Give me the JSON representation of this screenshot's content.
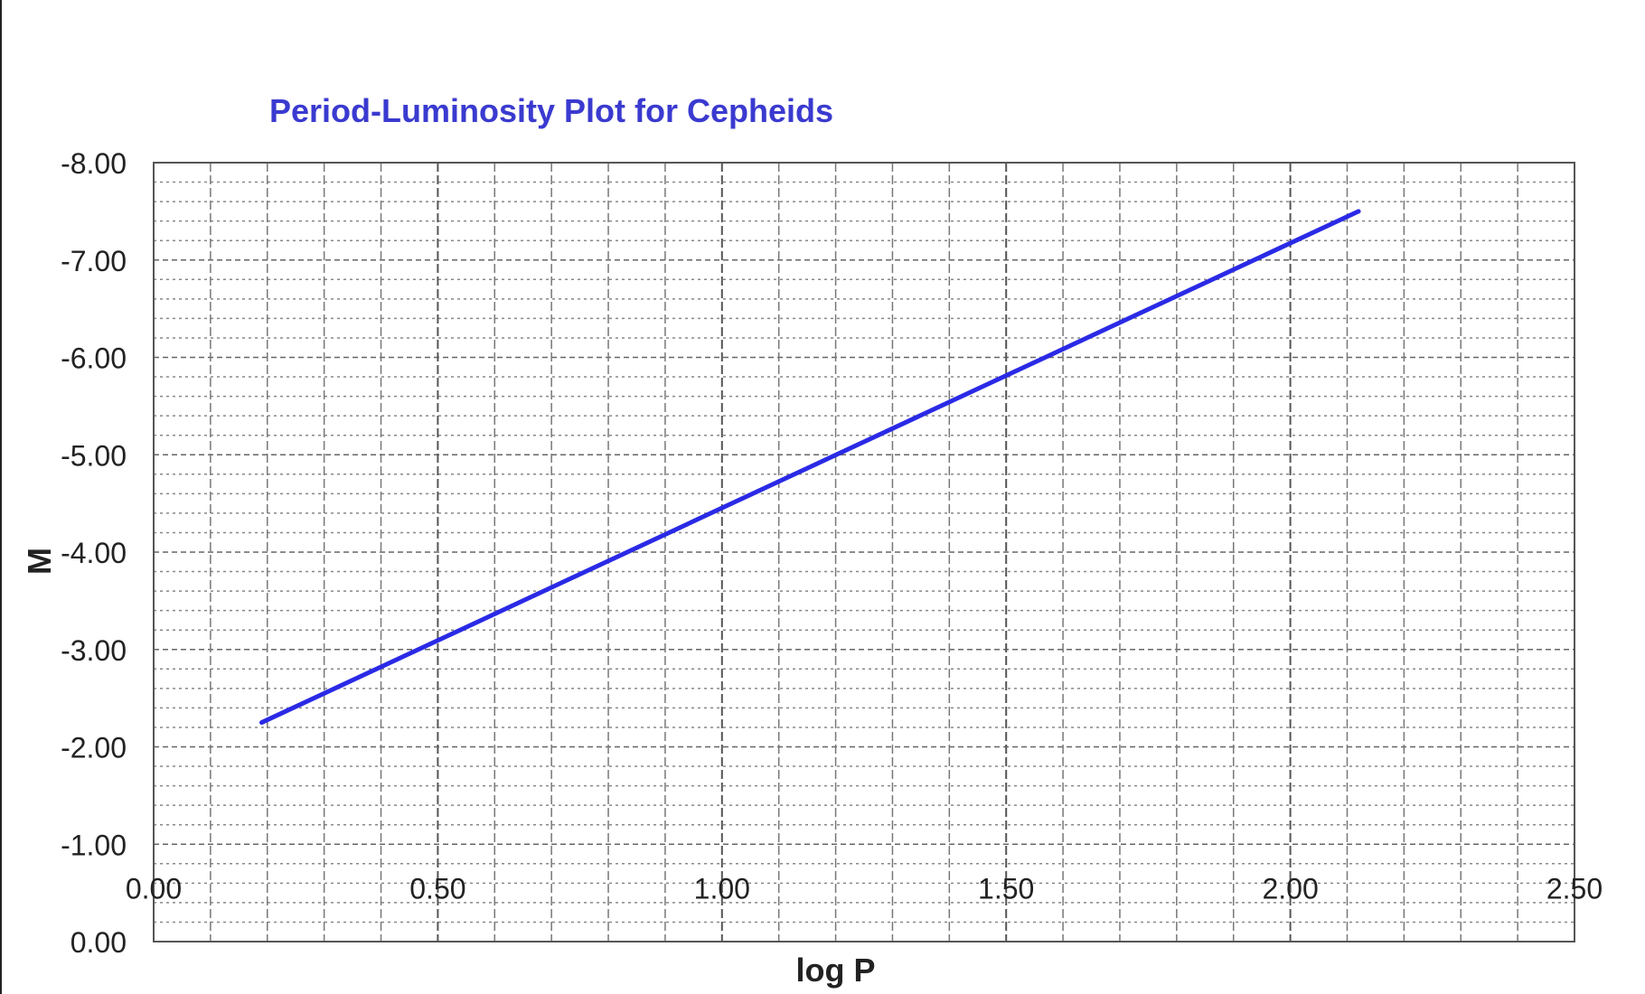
{
  "chart_data": {
    "type": "line",
    "title": "Period-Luminosity Plot for Cepheids",
    "xlabel": "log P",
    "ylabel": "M",
    "xlim": [
      0,
      2.5
    ],
    "ylim": [
      0,
      -8
    ],
    "y_inverted": true,
    "grid": true,
    "x_ticks": [
      "0.00",
      "0.50",
      "1.00",
      "1.50",
      "2.00",
      "2.50"
    ],
    "y_ticks": [
      "0.00",
      "-1.00",
      "-2.00",
      "-3.00",
      "-4.00",
      "-5.00",
      "-6.00",
      "-7.00",
      "-8.00"
    ],
    "series": [
      {
        "color": "#2a2ae6",
        "x": [
          0.19,
          2.12
        ],
        "y": [
          -2.25,
          -7.5
        ]
      }
    ]
  }
}
